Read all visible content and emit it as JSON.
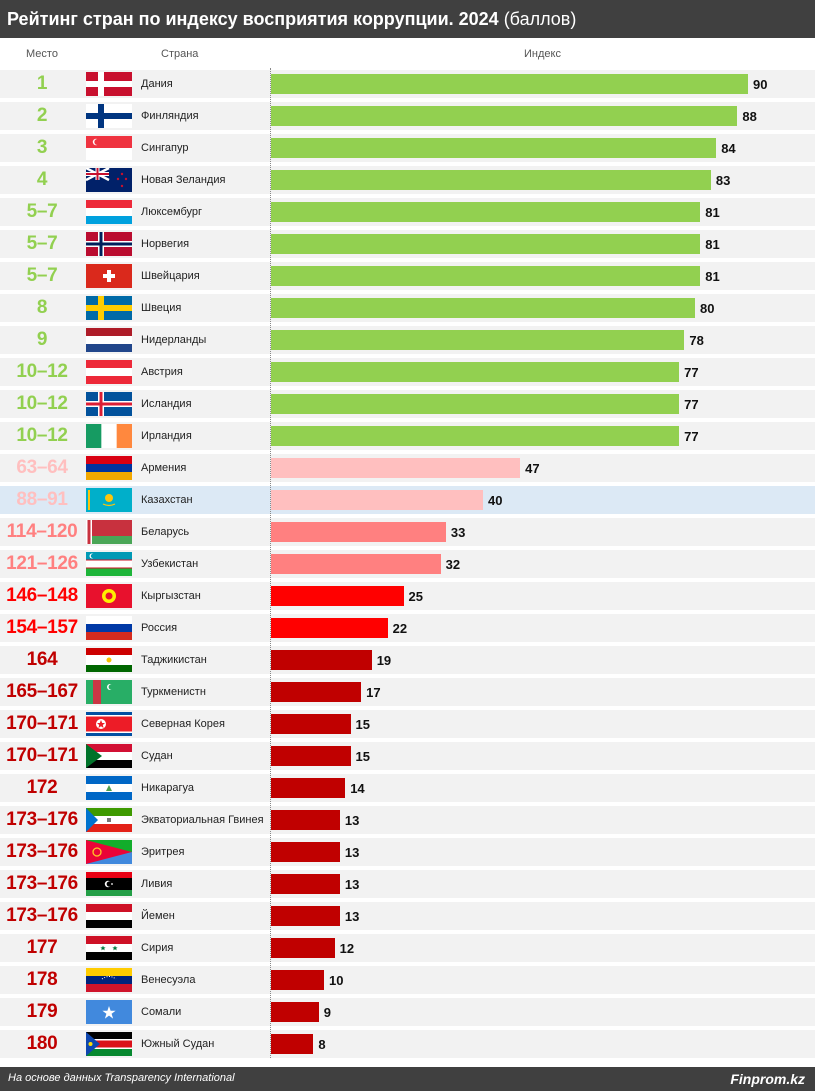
{
  "header": {
    "title_bold": "Рейтинг стран по индексу восприятия коррупции. 2024",
    "title_unit": "(баллов)",
    "col_rank": "Место",
    "col_country": "Страна",
    "col_index": "Индекс"
  },
  "footer": {
    "source": "На основе данных Transparency International",
    "brand": "Finprom.kz"
  },
  "colors": {
    "tier_green": "#92d050",
    "tier_light_pink": "#ffbfbf",
    "tier_salmon": "#ff8080",
    "tier_red": "#ff0000",
    "tier_dark_red": "#c00000",
    "highlight_row": "#dce9f5"
  },
  "chart_data": {
    "type": "bar",
    "orientation": "horizontal",
    "title": "Рейтинг стран по индексу восприятия коррупции. 2024 (баллов)",
    "xlabel": "Индекс",
    "xlim": [
      0,
      100
    ],
    "rows": [
      {
        "rank": "1",
        "country": "Дания",
        "value": 90,
        "color": "#92d050",
        "flag": "denmark-flag"
      },
      {
        "rank": "2",
        "country": "Финляндия",
        "value": 88,
        "color": "#92d050",
        "flag": "finland-flag"
      },
      {
        "rank": "3",
        "country": "Сингапур",
        "value": 84,
        "color": "#92d050",
        "flag": "singapore-flag"
      },
      {
        "rank": "4",
        "country": "Новая Зеландия",
        "value": 83,
        "color": "#92d050",
        "flag": "new-zealand-flag"
      },
      {
        "rank": "5–7",
        "country": "Люксембург",
        "value": 81,
        "color": "#92d050",
        "flag": "luxembourg-flag"
      },
      {
        "rank": "5–7",
        "country": "Норвегия",
        "value": 81,
        "color": "#92d050",
        "flag": "norway-flag"
      },
      {
        "rank": "5–7",
        "country": "Швейцария",
        "value": 81,
        "color": "#92d050",
        "flag": "switzerland-flag"
      },
      {
        "rank": "8",
        "country": "Швеция",
        "value": 80,
        "color": "#92d050",
        "flag": "sweden-flag"
      },
      {
        "rank": "9",
        "country": "Нидерланды",
        "value": 78,
        "color": "#92d050",
        "flag": "netherlands-flag"
      },
      {
        "rank": "10–12",
        "country": "Австрия",
        "value": 77,
        "color": "#92d050",
        "flag": "austria-flag"
      },
      {
        "rank": "10–12",
        "country": "Исландия",
        "value": 77,
        "color": "#92d050",
        "flag": "iceland-flag"
      },
      {
        "rank": "10–12",
        "country": "Ирландия",
        "value": 77,
        "color": "#92d050",
        "flag": "ireland-flag"
      },
      {
        "rank": "63–64",
        "country": "Армения",
        "value": 47,
        "color": "#ffbfbf",
        "flag": "armenia-flag"
      },
      {
        "rank": "88–91",
        "country": "Казахстан",
        "value": 40,
        "color": "#ffbfbf",
        "flag": "kazakhstan-flag",
        "highlight": true
      },
      {
        "rank": "114–120",
        "country": "Беларусь",
        "value": 33,
        "color": "#ff8080",
        "flag": "belarus-flag"
      },
      {
        "rank": "121–126",
        "country": "Узбекистан",
        "value": 32,
        "color": "#ff8080",
        "flag": "uzbekistan-flag"
      },
      {
        "rank": "146–148",
        "country": "Кыргызстан",
        "value": 25,
        "color": "#ff0000",
        "flag": "kyrgyzstan-flag"
      },
      {
        "rank": "154–157",
        "country": "Россия",
        "value": 22,
        "color": "#ff0000",
        "flag": "russia-flag"
      },
      {
        "rank": "164",
        "country": "Таджикистан",
        "value": 19,
        "color": "#c00000",
        "flag": "tajikistan-flag"
      },
      {
        "rank": "165–167",
        "country": "Туркменистн",
        "value": 17,
        "color": "#c00000",
        "flag": "turkmenistan-flag"
      },
      {
        "rank": "170–171",
        "country": "Северная Корея",
        "value": 15,
        "color": "#c00000",
        "flag": "north-korea-flag"
      },
      {
        "rank": "170–171",
        "country": "Судан",
        "value": 15,
        "color": "#c00000",
        "flag": "sudan-flag"
      },
      {
        "rank": "172",
        "country": "Никарагуа",
        "value": 14,
        "color": "#c00000",
        "flag": "nicaragua-flag"
      },
      {
        "rank": "173–176",
        "country": "Экваториальная Гвинея",
        "value": 13,
        "color": "#c00000",
        "flag": "equatorial-guinea-flag"
      },
      {
        "rank": "173–176",
        "country": "Эритрея",
        "value": 13,
        "color": "#c00000",
        "flag": "eritrea-flag"
      },
      {
        "rank": "173–176",
        "country": "Ливия",
        "value": 13,
        "color": "#c00000",
        "flag": "libya-flag"
      },
      {
        "rank": "173–176",
        "country": "Йемен",
        "value": 13,
        "color": "#c00000",
        "flag": "yemen-flag"
      },
      {
        "rank": "177",
        "country": "Сирия",
        "value": 12,
        "color": "#c00000",
        "flag": "syria-flag"
      },
      {
        "rank": "178",
        "country": "Венесуэла",
        "value": 10,
        "color": "#c00000",
        "flag": "venezuela-flag"
      },
      {
        "rank": "179",
        "country": "Сомали",
        "value": 9,
        "color": "#c00000",
        "flag": "somalia-flag"
      },
      {
        "rank": "180",
        "country": "Южный Судан",
        "value": 8,
        "color": "#c00000",
        "flag": "south-sudan-flag"
      }
    ]
  }
}
